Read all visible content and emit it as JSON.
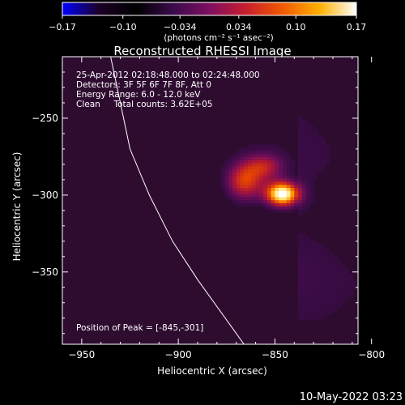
{
  "colorbar": {
    "ticks": [
      -0.17,
      -0.1,
      -0.034,
      0.034,
      0.1,
      0.17
    ],
    "tick_labels": [
      "−0.17",
      "−0.10",
      "−0.034",
      "0.034",
      "0.10",
      "0.17"
    ],
    "unit_label": "(photons cm⁻² s⁻¹ asec⁻²)",
    "range": [
      -0.17,
      0.17
    ],
    "colors": [
      "#0000ff",
      "#1c0026",
      "#000000",
      "#3a0a4a",
      "#7d0f60",
      "#c81e2c",
      "#f05a00",
      "#ffb000",
      "#ffffff"
    ]
  },
  "chart_data": {
    "type": "heatmap",
    "title": "Reconstructed RHESSI Image",
    "xlabel": "Heliocentric X (arcsec)",
    "ylabel": "Heliocentric Y (arcsec)",
    "xlim": [
      -960,
      -807
    ],
    "ylim": [
      -397,
      -210
    ],
    "xticks": [
      -950,
      -900,
      -850,
      -800
    ],
    "xtick_labels": [
      "−950",
      "−900",
      "−850",
      "−800"
    ],
    "yticks": [
      -250,
      -300,
      -350
    ],
    "ytick_labels": [
      "−250",
      "−300",
      "−350"
    ],
    "peak": {
      "x": -845,
      "y": -301
    },
    "sources": [
      {
        "x": -847,
        "y": -300,
        "value": 0.17,
        "sx": 6,
        "sy": 5.5
      },
      {
        "x": -867,
        "y": -292,
        "value": 0.09,
        "sx": 7,
        "sy": 9
      },
      {
        "x": -856,
        "y": -282,
        "value": 0.06,
        "sx": 7,
        "sy": 6
      }
    ],
    "limb": [
      [
        -935,
        -210
      ],
      [
        -930,
        -240
      ],
      [
        -925,
        -270
      ],
      [
        -915,
        -300
      ],
      [
        -903,
        -330
      ],
      [
        -890,
        -355
      ],
      [
        -870,
        -390
      ],
      [
        -866,
        -397
      ]
    ],
    "info_lines": [
      "25-Apr-2012 02:18:48.000 to 02:24:48.000",
      "Detectors: 3F 5F 6F 7F 8F, Att 0",
      "Energy Range: 6.0 - 12.0 keV",
      "Clean     Total counts: 3.62E+05"
    ],
    "peak_label": "Position of Peak = [-845,-301]"
  },
  "footer": {
    "timestamp": "10-May-2022 03:23"
  }
}
